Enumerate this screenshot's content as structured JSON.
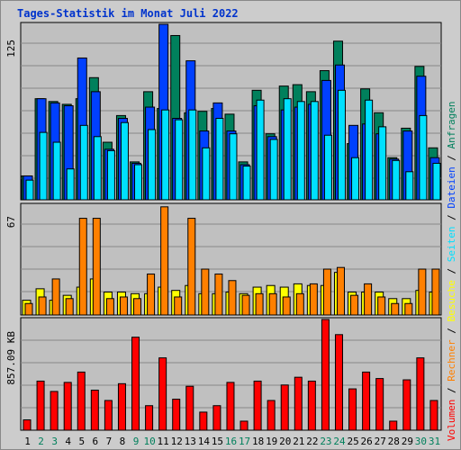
{
  "title": "Tages-Statistik im Monat Juli 2022",
  "legend": {
    "anfragen": "Anfragen",
    "dateien": "Dateien",
    "seiten": "Seiten",
    "besuche": "Besuche",
    "rechner": "Rechner",
    "volumen": "Volumen",
    "sep": " / "
  },
  "panel_maxlabels": {
    "top": "125",
    "middle": "67",
    "bottom": "857.09 KB"
  },
  "colors": {
    "anfragen": "#00805c",
    "dateien": "#0040ff",
    "seiten": "#00e0ff",
    "besuche": "#ffff00",
    "rechner": "#ff8000",
    "volumen": "#ff0000",
    "weekend_label": "#00805c",
    "weekday_label": "#000000",
    "title": "#0033cc",
    "panel_bg": "#c0c0c0"
  },
  "chart_data": {
    "type": "bar",
    "categories": [
      "1",
      "2",
      "3",
      "4",
      "5",
      "6",
      "7",
      "8",
      "9",
      "10",
      "11",
      "12",
      "13",
      "14",
      "15",
      "16",
      "17",
      "18",
      "19",
      "20",
      "21",
      "22",
      "23",
      "24",
      "25",
      "26",
      "27",
      "28",
      "29",
      "30",
      "31"
    ],
    "weekend_days": [
      "2",
      "3",
      "9",
      "10",
      "16",
      "17",
      "23",
      "24",
      "30",
      "31"
    ],
    "panels": [
      {
        "max_label": "125",
        "ymax": 125,
        "series": [
          {
            "name": "Anfragen",
            "values": [
              17,
              72,
              70,
              68,
              72,
              87,
              41,
              60,
              27,
              77,
              65,
              117,
              62,
              63,
              65,
              61,
              27,
              78,
              47,
              81,
              82,
              77,
              92,
              113,
              40,
              79,
              62,
              30,
              51,
              95,
              37
            ]
          },
          {
            "name": "Dateien",
            "values": [
              17,
              72,
              69,
              67,
              101,
              77,
              36,
              58,
              26,
              66,
              125,
              58,
              99,
              49,
              69,
              49,
              25,
              67,
              45,
              64,
              66,
              68,
              85,
              96,
              53,
              54,
              47,
              29,
              49,
              88,
              30
            ]
          },
          {
            "name": "Seiten",
            "values": [
              14,
              48,
              41,
              22,
              53,
              45,
              35,
              55,
              25,
              50,
              64,
              57,
              64,
              37,
              58,
              47,
              24,
              71,
              43,
              72,
              70,
              70,
              46,
              78,
              30,
              71,
              52,
              28,
              20,
              60,
              26
            ]
          }
        ]
      },
      {
        "max_label": "67",
        "ymax": 67,
        "series": [
          {
            "name": "Besuche",
            "values": [
              9,
              16,
              9,
              12,
              17,
              22,
              14,
              14,
              13,
              13,
              17,
              15,
              18,
              13,
              13,
              14,
              13,
              17,
              18,
              17,
              19,
              18,
              18,
              26,
              14,
              14,
              14,
              10,
              10,
              15,
              14
            ]
          },
          {
            "name": "Rechner",
            "values": [
              7,
              11,
              22,
              10,
              59,
              59,
              10,
              11,
              10,
              25,
              66,
              11,
              59,
              28,
              25,
              21,
              12,
              13,
              13,
              11,
              13,
              19,
              28,
              29,
              12,
              19,
              11,
              7,
              7,
              28,
              28
            ]
          }
        ]
      },
      {
        "max_label": "857.09 KB",
        "ymax": 857.09,
        "series": [
          {
            "name": "Volumen",
            "values": [
              80,
              380,
              300,
              370,
              450,
              310,
              230,
              360,
              720,
              190,
              560,
              240,
              340,
              140,
              190,
              370,
              70,
              380,
              230,
              350,
              410,
              380,
              857,
              740,
              320,
              450,
              400,
              70,
              390,
              560,
              230
            ]
          }
        ]
      }
    ]
  }
}
